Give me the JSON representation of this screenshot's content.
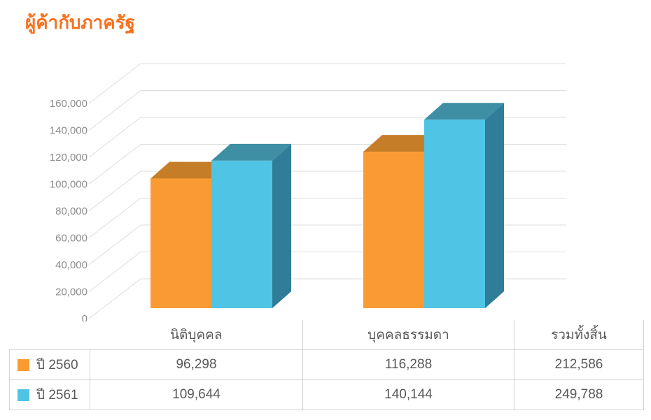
{
  "page": {
    "title": "ผู้ค้ากับภาครัฐ",
    "title_color": "#F9701E"
  },
  "chart_data": {
    "type": "bar",
    "style": "3d-clustered",
    "title": "ผู้ค้ากับภาครัฐ",
    "categories": [
      "นิติบุคคล",
      "บุคคลธรรมดา",
      "รวมทั้งสิ้น"
    ],
    "plotted_categories": [
      "นิติบุคคล",
      "บุคคลธรรมดา"
    ],
    "series": [
      {
        "name": "ปี 2560",
        "values": [
          96298,
          116288,
          212586
        ],
        "color": "#F99B32",
        "color_top": "#C67D28",
        "color_side": "#B2701F"
      },
      {
        "name": "ปี 2561",
        "values": [
          109644,
          140144,
          249788
        ],
        "color": "#4FC4E4",
        "color_top": "#3E8FA4",
        "color_side": "#2F7D99"
      }
    ],
    "ylim": [
      0,
      160000
    ],
    "ytick_step": 20000,
    "ytick_labels": [
      "0",
      "20,000",
      "40,000",
      "60,000",
      "80,000",
      "100,000",
      "120,000",
      "140,000",
      "160,000"
    ],
    "grid": true,
    "grid_color": "#DDDDDD",
    "axis_label_color": "#8C8C8C",
    "legend_position": "table-left"
  },
  "table": {
    "col_headers": [
      "",
      "นิติบุคคล",
      "บุคคลธรรมดา",
      "รวมทั้งสิ้น"
    ],
    "rows": [
      {
        "label": "ปี 2560",
        "swatch_color": "#F99B32",
        "values": [
          "96,298",
          "116,288",
          "212,586"
        ]
      },
      {
        "label": "ปี 2561",
        "swatch_color": "#4FC4E4",
        "values": [
          "109,644",
          "140,144",
          "249,788"
        ]
      }
    ]
  }
}
